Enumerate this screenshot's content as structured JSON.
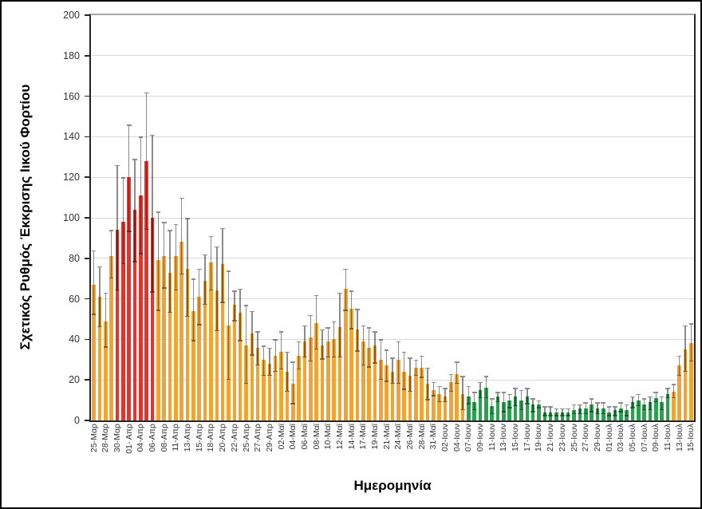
{
  "chart_data": {
    "type": "bar",
    "title": "",
    "xlabel": "Ημερομηνία",
    "ylabel": "Σχετικός Ρυθμός Έκκρισης Ιικού Φορτίου",
    "ylim": [
      0,
      200
    ],
    "y_ticks": [
      0,
      20,
      40,
      60,
      80,
      100,
      120,
      140,
      160,
      180,
      200
    ],
    "grid": "horizontal",
    "legend": null,
    "error_bars": true,
    "x_tick_rotation": -90,
    "colors": {
      "orange": "#f2a432",
      "red": "#e5332b",
      "green": "#28a24c",
      "error_bar": "#8c8c8c",
      "gridline": "#d9d9d9",
      "plot_top_border": "#a6a6a6",
      "axis": "#262626"
    },
    "bars": [
      {
        "label": "25-Μαρ",
        "value": 67,
        "err_lo": 52,
        "err_hi": 84,
        "color": "orange"
      },
      {
        "label": "",
        "value": 61,
        "err_lo": 46,
        "err_hi": 76,
        "color": "orange"
      },
      {
        "label": "28-Μαρ",
        "value": 49,
        "err_lo": 36,
        "err_hi": 63,
        "color": "orange"
      },
      {
        "label": "",
        "value": 81,
        "err_lo": 70,
        "err_hi": 94,
        "color": "orange"
      },
      {
        "label": "30-Μαρ",
        "value": 94,
        "err_lo": 64,
        "err_hi": 126,
        "color": "red"
      },
      {
        "label": "",
        "value": 98,
        "err_lo": 77,
        "err_hi": 120,
        "color": "red"
      },
      {
        "label": "01- Απρ",
        "value": 120,
        "err_lo": 93,
        "err_hi": 146,
        "color": "red"
      },
      {
        "label": "",
        "value": 104,
        "err_lo": 78,
        "err_hi": 129,
        "color": "red"
      },
      {
        "label": "04-Απρ",
        "value": 111,
        "err_lo": 82,
        "err_hi": 140,
        "color": "red"
      },
      {
        "label": "",
        "value": 128,
        "err_lo": 94,
        "err_hi": 162,
        "color": "red"
      },
      {
        "label": "06-Απρ",
        "value": 100,
        "err_lo": 63,
        "err_hi": 141,
        "color": "red"
      },
      {
        "label": "",
        "value": 79,
        "err_lo": 54,
        "err_hi": 103,
        "color": "orange"
      },
      {
        "label": "08-Απρ",
        "value": 81,
        "err_lo": 65,
        "err_hi": 98,
        "color": "orange"
      },
      {
        "label": "",
        "value": 73,
        "err_lo": 53,
        "err_hi": 94,
        "color": "orange"
      },
      {
        "label": "11-Απρ",
        "value": 81,
        "err_lo": 64,
        "err_hi": 97,
        "color": "orange"
      },
      {
        "label": "",
        "value": 88,
        "err_lo": 72,
        "err_hi": 110,
        "color": "orange"
      },
      {
        "label": "13-Απρ",
        "value": 75,
        "err_lo": 51,
        "err_hi": 100,
        "color": "orange"
      },
      {
        "label": "",
        "value": 54,
        "err_lo": 39,
        "err_hi": 70,
        "color": "orange"
      },
      {
        "label": "15-Απρ",
        "value": 61,
        "err_lo": 47,
        "err_hi": 75,
        "color": "orange"
      },
      {
        "label": "",
        "value": 69,
        "err_lo": 57,
        "err_hi": 82,
        "color": "orange"
      },
      {
        "label": "18-Απρ",
        "value": 78,
        "err_lo": 64,
        "err_hi": 91,
        "color": "orange"
      },
      {
        "label": "",
        "value": 64,
        "err_lo": 44,
        "err_hi": 86,
        "color": "orange"
      },
      {
        "label": "20-Απρ",
        "value": 77,
        "err_lo": 58,
        "err_hi": 95,
        "color": "orange"
      },
      {
        "label": "",
        "value": 47,
        "err_lo": 20,
        "err_hi": 74,
        "color": "orange"
      },
      {
        "label": "22-Απρ",
        "value": 57,
        "err_lo": 49,
        "err_hi": 64,
        "color": "orange"
      },
      {
        "label": "",
        "value": 53,
        "err_lo": 39,
        "err_hi": 65,
        "color": "orange"
      },
      {
        "label": "25-Απρ",
        "value": 37,
        "err_lo": 18,
        "err_hi": 57,
        "color": "orange"
      },
      {
        "label": "",
        "value": 43,
        "err_lo": 32,
        "err_hi": 54,
        "color": "orange"
      },
      {
        "label": "27-Απρ",
        "value": 36,
        "err_lo": 27,
        "err_hi": 44,
        "color": "orange"
      },
      {
        "label": "",
        "value": 30,
        "err_lo": 22,
        "err_hi": 37,
        "color": "orange"
      },
      {
        "label": "29-Απρ",
        "value": 28,
        "err_lo": 22,
        "err_hi": 36,
        "color": "orange"
      },
      {
        "label": "",
        "value": 32,
        "err_lo": 24,
        "err_hi": 40,
        "color": "orange"
      },
      {
        "label": "02-Μαϊ",
        "value": 34,
        "err_lo": 25,
        "err_hi": 44,
        "color": "orange"
      },
      {
        "label": "",
        "value": 24,
        "err_lo": 14,
        "err_hi": 34,
        "color": "orange"
      },
      {
        "label": "04-Μαϊ",
        "value": 18,
        "err_lo": 8,
        "err_hi": 29,
        "color": "orange"
      },
      {
        "label": "",
        "value": 32,
        "err_lo": 25,
        "err_hi": 39,
        "color": "orange"
      },
      {
        "label": "06-Μαϊ",
        "value": 39,
        "err_lo": 31,
        "err_hi": 47,
        "color": "orange"
      },
      {
        "label": "",
        "value": 41,
        "err_lo": 29,
        "err_hi": 52,
        "color": "orange"
      },
      {
        "label": "08-Μαϊ",
        "value": 48,
        "err_lo": 35,
        "err_hi": 62,
        "color": "orange"
      },
      {
        "label": "",
        "value": 37,
        "err_lo": 30,
        "err_hi": 45,
        "color": "orange"
      },
      {
        "label": "10-Μαϊ",
        "value": 39,
        "err_lo": 31,
        "err_hi": 46,
        "color": "orange"
      },
      {
        "label": "",
        "value": 40,
        "err_lo": 31,
        "err_hi": 49,
        "color": "orange"
      },
      {
        "label": "12-Μαϊ",
        "value": 46,
        "err_lo": 31,
        "err_hi": 63,
        "color": "orange"
      },
      {
        "label": "",
        "value": 65,
        "err_lo": 54,
        "err_hi": 75,
        "color": "orange"
      },
      {
        "label": "14-Μαϊ",
        "value": 55,
        "err_lo": 45,
        "err_hi": 64,
        "color": "orange"
      },
      {
        "label": "",
        "value": 45,
        "err_lo": 34,
        "err_hi": 55,
        "color": "orange"
      },
      {
        "label": "17-Μαϊ",
        "value": 39,
        "err_lo": 27,
        "err_hi": 47,
        "color": "orange"
      },
      {
        "label": "",
        "value": 36,
        "err_lo": 26,
        "err_hi": 46,
        "color": "orange"
      },
      {
        "label": "19-Μαϊ",
        "value": 37,
        "err_lo": 28,
        "err_hi": 44,
        "color": "orange"
      },
      {
        "label": "",
        "value": 30,
        "err_lo": 20,
        "err_hi": 40,
        "color": "orange"
      },
      {
        "label": "21-Μαϊ",
        "value": 27,
        "err_lo": 19,
        "err_hi": 35,
        "color": "orange"
      },
      {
        "label": "",
        "value": 24,
        "err_lo": 18,
        "err_hi": 31,
        "color": "orange"
      },
      {
        "label": "24-Μαϊ",
        "value": 30,
        "err_lo": 18,
        "err_hi": 39,
        "color": "orange"
      },
      {
        "label": "",
        "value": 24,
        "err_lo": 15,
        "err_hi": 34,
        "color": "orange"
      },
      {
        "label": "26-Μαϊ",
        "value": 22,
        "err_lo": 14,
        "err_hi": 31,
        "color": "orange"
      },
      {
        "label": "",
        "value": 26,
        "err_lo": 22,
        "err_hi": 30,
        "color": "orange"
      },
      {
        "label": "28-Μαϊ",
        "value": 26,
        "err_lo": 21,
        "err_hi": 32,
        "color": "orange"
      },
      {
        "label": "",
        "value": 18,
        "err_lo": 10,
        "err_hi": 26,
        "color": "orange"
      },
      {
        "label": "31-Μαϊ",
        "value": 15,
        "err_lo": 12,
        "err_hi": 19,
        "color": "orange"
      },
      {
        "label": "",
        "value": 13,
        "err_lo": 9,
        "err_hi": 17,
        "color": "orange"
      },
      {
        "label": "02-Ιουν",
        "value": 12,
        "err_lo": 9,
        "err_hi": 16,
        "color": "orange"
      },
      {
        "label": "",
        "value": 19,
        "err_lo": 14,
        "err_hi": 23,
        "color": "orange"
      },
      {
        "label": "04-Ιουν",
        "value": 23,
        "err_lo": 18,
        "err_hi": 29,
        "color": "orange"
      },
      {
        "label": "",
        "value": 13,
        "err_lo": 5,
        "err_hi": 22,
        "color": "orange"
      },
      {
        "label": "07-Ιουν",
        "value": 12,
        "err_lo": 8,
        "err_hi": 17,
        "color": "green"
      },
      {
        "label": "",
        "value": 9,
        "err_lo": 5,
        "err_hi": 14,
        "color": "green"
      },
      {
        "label": "09-Ιουν",
        "value": 15,
        "err_lo": 11,
        "err_hi": 19,
        "color": "green"
      },
      {
        "label": "",
        "value": 16,
        "err_lo": 11,
        "err_hi": 22,
        "color": "green"
      },
      {
        "label": "11-Ιουν",
        "value": 7,
        "err_lo": 3,
        "err_hi": 11,
        "color": "green"
      },
      {
        "label": "",
        "value": 12,
        "err_lo": 9,
        "err_hi": 14,
        "color": "green"
      },
      {
        "label": "13-Ιουν",
        "value": 9,
        "err_lo": 4,
        "err_hi": 14,
        "color": "green"
      },
      {
        "label": "",
        "value": 10,
        "err_lo": 6,
        "err_hi": 13,
        "color": "green"
      },
      {
        "label": "15-Ιουν",
        "value": 12,
        "err_lo": 7,
        "err_hi": 16,
        "color": "green"
      },
      {
        "label": "",
        "value": 10,
        "err_lo": 5,
        "err_hi": 15,
        "color": "green"
      },
      {
        "label": "17-Ιουν",
        "value": 12,
        "err_lo": 8,
        "err_hi": 16,
        "color": "green"
      },
      {
        "label": "",
        "value": 8,
        "err_lo": 4,
        "err_hi": 11,
        "color": "green"
      },
      {
        "label": "19-Ιουν",
        "value": 8,
        "err_lo": 6,
        "err_hi": 10,
        "color": "green"
      },
      {
        "label": "",
        "value": 4,
        "err_lo": 2,
        "err_hi": 7,
        "color": "green"
      },
      {
        "label": "21-Ιουν",
        "value": 4,
        "err_lo": 2,
        "err_hi": 7,
        "color": "green"
      },
      {
        "label": "",
        "value": 4,
        "err_lo": 2,
        "err_hi": 6,
        "color": "green"
      },
      {
        "label": "23-Ιουν",
        "value": 4,
        "err_lo": 2,
        "err_hi": 6,
        "color": "green"
      },
      {
        "label": "",
        "value": 4,
        "err_lo": 2,
        "err_hi": 6,
        "color": "green"
      },
      {
        "label": "25-Ιουν",
        "value": 5,
        "err_lo": 3,
        "err_hi": 8,
        "color": "green"
      },
      {
        "label": "",
        "value": 6,
        "err_lo": 3,
        "err_hi": 8,
        "color": "green"
      },
      {
        "label": "27-Ιουν",
        "value": 6,
        "err_lo": 3,
        "err_hi": 9,
        "color": "green"
      },
      {
        "label": "",
        "value": 8,
        "err_lo": 4,
        "err_hi": 11,
        "color": "green"
      },
      {
        "label": "29-Ιουν",
        "value": 6,
        "err_lo": 3,
        "err_hi": 9,
        "color": "green"
      },
      {
        "label": "",
        "value": 6,
        "err_lo": 3,
        "err_hi": 9,
        "color": "green"
      },
      {
        "label": "01-Ιουλ",
        "value": 4,
        "err_lo": 2,
        "err_hi": 7,
        "color": "green"
      },
      {
        "label": "",
        "value": 5,
        "err_lo": 2,
        "err_hi": 7,
        "color": "green"
      },
      {
        "label": "03-Ιουλ",
        "value": 6,
        "err_lo": 4,
        "err_hi": 9,
        "color": "green"
      },
      {
        "label": "",
        "value": 5,
        "err_lo": 2,
        "err_hi": 8,
        "color": "green"
      },
      {
        "label": "05-Ιουλ",
        "value": 9,
        "err_lo": 6,
        "err_hi": 12,
        "color": "green"
      },
      {
        "label": "",
        "value": 10,
        "err_lo": 7,
        "err_hi": 13,
        "color": "green"
      },
      {
        "label": "07-Ιουλ",
        "value": 8,
        "err_lo": 5,
        "err_hi": 11,
        "color": "green"
      },
      {
        "label": "",
        "value": 9,
        "err_lo": 5,
        "err_hi": 12,
        "color": "green"
      },
      {
        "label": "09-Ιουλ",
        "value": 11,
        "err_lo": 9,
        "err_hi": 14,
        "color": "green"
      },
      {
        "label": "",
        "value": 9,
        "err_lo": 5,
        "err_hi": 12,
        "color": "green"
      },
      {
        "label": "11-Ιουλ",
        "value": 13,
        "err_lo": 11,
        "err_hi": 16,
        "color": "green"
      },
      {
        "label": "",
        "value": 14,
        "err_lo": 11,
        "err_hi": 18,
        "color": "orange"
      },
      {
        "label": "13-Ιουλ",
        "value": 27,
        "err_lo": 22,
        "err_hi": 32,
        "color": "orange"
      },
      {
        "label": "",
        "value": 35,
        "err_lo": 24,
        "err_hi": 47,
        "color": "orange"
      },
      {
        "label": "15-Ιουλ",
        "value": 38,
        "err_lo": 29,
        "err_hi": 48,
        "color": "orange"
      }
    ]
  }
}
